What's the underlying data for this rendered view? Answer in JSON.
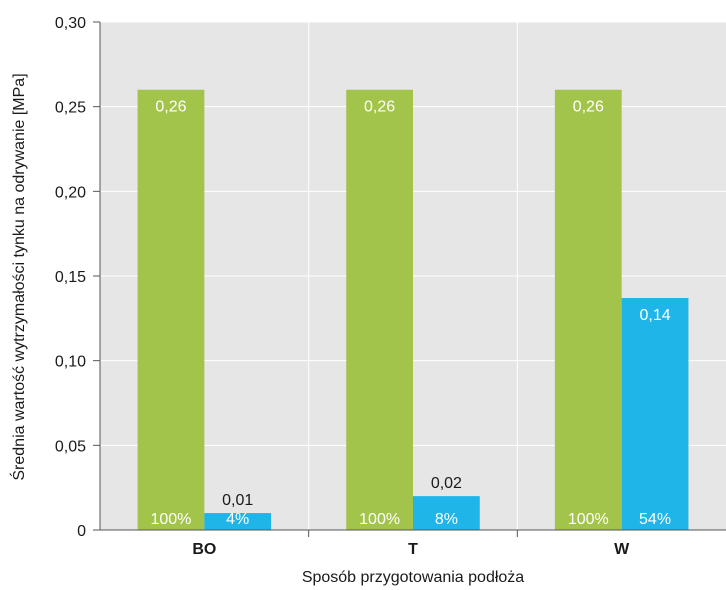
{
  "chart_data": {
    "type": "bar",
    "categories": [
      "BO",
      "T",
      "W"
    ],
    "xlabel": "Sposób przygotowania podłoża",
    "ylabel": "Średnia wartość wytrzymałości tynku na odrywanie [MPa]",
    "ylim": [
      0,
      0.3
    ],
    "yticks": [
      "0",
      "0,05",
      "0,10",
      "0,15",
      "0,20",
      "0,25",
      "0,30"
    ],
    "grid": true,
    "series": [
      {
        "values": [
          0.26,
          0.26,
          0.26
        ],
        "value_labels": [
          "0,26",
          "0,26",
          "0,26"
        ],
        "percent_labels": [
          "100%",
          "100%",
          "100%"
        ],
        "color": "#a3c44a"
      },
      {
        "values": [
          0.01,
          0.02,
          0.137
        ],
        "value_labels": [
          "0,01",
          "0,02",
          "0,14"
        ],
        "percent_labels": [
          "4%",
          "8%",
          "54%"
        ],
        "color": "#1fb5e8"
      }
    ],
    "plot_background": "#e6e6e6"
  }
}
